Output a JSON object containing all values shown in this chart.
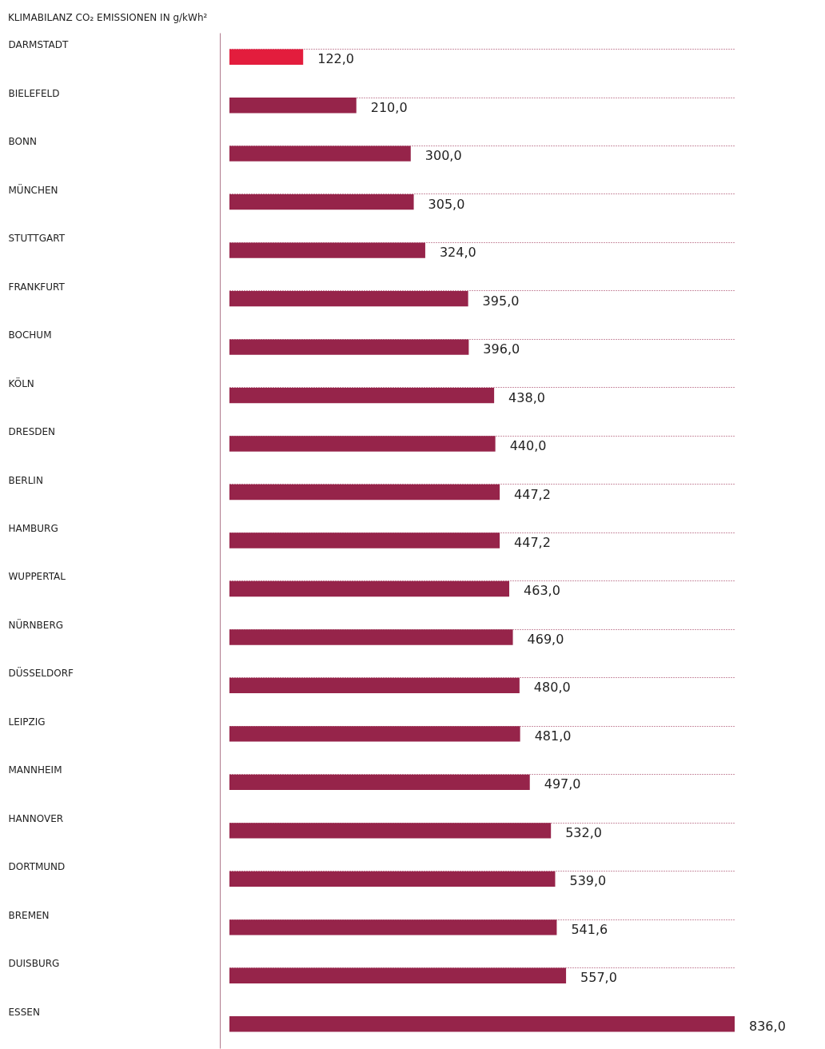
{
  "chart_data": {
    "type": "bar",
    "orientation": "horizontal",
    "title": "KLIMABILANZ CO₂ EMISSIONEN IN g/kWh²",
    "categories": [
      "DARMSTADT",
      "BIELEFELD",
      "BONN",
      "MÜNCHEN",
      "STUTTGART",
      "FRANKFURT",
      "BOCHUM",
      "KÖLN",
      "DRESDEN",
      "BERLIN",
      "HAMBURG",
      "WUPPERTAL",
      "NÜRNBERG",
      "DÜSSELDORF",
      "LEIPZIG",
      "MANNHEIM",
      "HANNOVER",
      "DORTMUND",
      "BREMEN",
      "DUISBURG",
      "ESSEN"
    ],
    "values": [
      122,
      210,
      300,
      305,
      324,
      395,
      396,
      438,
      440,
      447.2,
      447.2,
      463,
      469,
      480,
      481,
      497,
      532,
      539,
      541.6,
      557,
      836
    ],
    "value_labels": [
      "122,0",
      "210,0",
      "300,0",
      "305,0",
      "324,0",
      "395,0",
      "396,0",
      "438,0",
      "440,0",
      "447,2",
      "447,2",
      "463,0",
      "469,0",
      "480,0",
      "481,0",
      "497,0",
      "532,0",
      "539,0",
      "541,6",
      "557,0",
      "836,0"
    ],
    "colors": [
      "#e31d3d",
      "#96244a",
      "#96244a",
      "#96244a",
      "#96244a",
      "#96244a",
      "#96244a",
      "#96244a",
      "#96244a",
      "#96244a",
      "#96244a",
      "#96244a",
      "#96244a",
      "#96244a",
      "#96244a",
      "#96244a",
      "#96244a",
      "#96244a",
      "#96244a",
      "#96244a",
      "#96244a"
    ],
    "grid": "y"
  }
}
